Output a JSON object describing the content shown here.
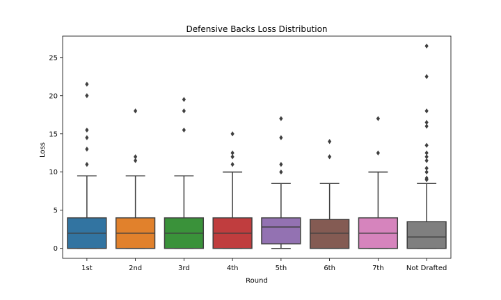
{
  "chart_data": {
    "type": "box",
    "title": "Defensive Backs Loss Distribution",
    "xlabel": "Round",
    "ylabel": "Loss",
    "ylim": [
      -1.3,
      27.8
    ],
    "yticks": [
      0,
      5,
      10,
      15,
      20,
      25
    ],
    "grid": false,
    "legend": "none",
    "categories": [
      "1st",
      "2nd",
      "3rd",
      "4th",
      "5th",
      "6th",
      "7th",
      "Not Drafted"
    ],
    "colors": [
      "#3274a1",
      "#e1812c",
      "#3a923a",
      "#c03d3e",
      "#9372b2",
      "#845b53",
      "#d684bd",
      "#7f7f7f"
    ],
    "boxes": [
      {
        "category": "1st",
        "whisker_low": 0,
        "q1": 0,
        "median": 2.0,
        "q3": 4.0,
        "whisker_high": 9.5,
        "outliers": [
          11,
          13,
          14.5,
          15.5,
          20,
          21.5
        ]
      },
      {
        "category": "2nd",
        "whisker_low": 0,
        "q1": 0,
        "median": 2.0,
        "q3": 4.0,
        "whisker_high": 9.5,
        "outliers": [
          11.5,
          12,
          18
        ]
      },
      {
        "category": "3rd",
        "whisker_low": 0,
        "q1": 0,
        "median": 2.0,
        "q3": 4.0,
        "whisker_high": 9.5,
        "outliers": [
          15.5,
          18,
          19.5
        ]
      },
      {
        "category": "4th",
        "whisker_low": 0,
        "q1": 0,
        "median": 2.0,
        "q3": 4.0,
        "whisker_high": 10.0,
        "outliers": [
          11,
          12,
          12.5,
          15
        ]
      },
      {
        "category": "5th",
        "whisker_low": 0,
        "q1": 0.6,
        "median": 2.8,
        "q3": 4.0,
        "whisker_high": 8.5,
        "outliers": [
          10,
          11,
          14.5,
          17
        ]
      },
      {
        "category": "6th",
        "whisker_low": 0,
        "q1": 0,
        "median": 2.0,
        "q3": 3.8,
        "whisker_high": 8.5,
        "outliers": [
          12,
          14
        ]
      },
      {
        "category": "7th",
        "whisker_low": 0,
        "q1": 0,
        "median": 2.0,
        "q3": 4.0,
        "whisker_high": 10.0,
        "outliers": [
          12.5,
          17
        ]
      },
      {
        "category": "Not Drafted",
        "whisker_low": 0,
        "q1": 0,
        "median": 1.5,
        "q3": 3.5,
        "whisker_high": 8.5,
        "outliers": [
          9,
          9.2,
          10,
          10.5,
          11.5,
          12,
          12.5,
          13.5,
          16,
          16.5,
          18,
          22.5,
          26.5
        ]
      }
    ]
  }
}
